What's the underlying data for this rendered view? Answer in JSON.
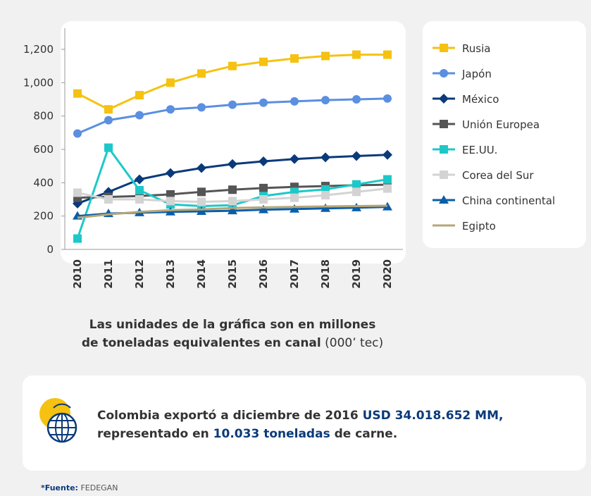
{
  "chart_data": {
    "type": "line",
    "categories": [
      "2010",
      "2011",
      "2012",
      "2013",
      "2014",
      "2015",
      "2016",
      "2017",
      "2018",
      "2019",
      "2020"
    ],
    "ylim": [
      0,
      1200
    ],
    "yticks": [
      0,
      200,
      400,
      600,
      800,
      {
        "value": 1000,
        "label": "1,000"
      },
      {
        "value": 1200,
        "label": "1,200"
      }
    ],
    "series": [
      {
        "name": "Rusia",
        "color": "#f5c211",
        "marker": "square",
        "values": [
          935,
          840,
          925,
          1000,
          1055,
          1100,
          1125,
          1145,
          1160,
          1168,
          1168
        ]
      },
      {
        "name": "Japón",
        "color": "#5b8fe0",
        "marker": "circle",
        "values": [
          695,
          775,
          805,
          840,
          852,
          868,
          880,
          888,
          895,
          900,
          905
        ]
      },
      {
        "name": "México",
        "color": "#0a3a7a",
        "marker": "diamond",
        "values": [
          275,
          345,
          420,
          458,
          488,
          512,
          528,
          542,
          552,
          560,
          567
        ]
      },
      {
        "name": "Unión Europea",
        "color": "#555555",
        "marker": "square",
        "values": [
          310,
          315,
          320,
          330,
          345,
          358,
          368,
          375,
          380,
          385,
          388
        ]
      },
      {
        "name": "EE.UU.",
        "color": "#1ec8c8",
        "marker": "square",
        "values": [
          65,
          610,
          355,
          270,
          260,
          265,
          320,
          345,
          360,
          390,
          420
        ]
      },
      {
        "name": "Corea del Sur",
        "color": "#d3d3d3",
        "marker": "square",
        "values": [
          340,
          300,
          300,
          290,
          285,
          290,
          300,
          310,
          325,
          345,
          365
        ]
      },
      {
        "name": "China continental",
        "color": "#0b5ea8",
        "marker": "triangle",
        "values": [
          200,
          215,
          220,
          225,
          228,
          232,
          238,
          242,
          246,
          250,
          255
        ]
      },
      {
        "name": "Egipto",
        "color": "#b5a678",
        "marker": "none",
        "values": [
          190,
          210,
          225,
          235,
          240,
          248,
          252,
          255,
          258,
          260,
          262
        ]
      }
    ]
  },
  "caption": {
    "line1": "Las unidades de la gráfica son en millones",
    "line2_bold": "de toneladas equivalentes en canal",
    "line2_rest": " (000’ tec)"
  },
  "info": {
    "line1_a": "Colombia exportó a diciembre de 2016 ",
    "line1_b": "USD 34.018.652 MM,",
    "line2_a": "representado en ",
    "line2_b": "10.033 toneladas",
    "line2_c": " de carne."
  },
  "source": {
    "label": "*Fuente:",
    "text": " FEDEGAN"
  }
}
